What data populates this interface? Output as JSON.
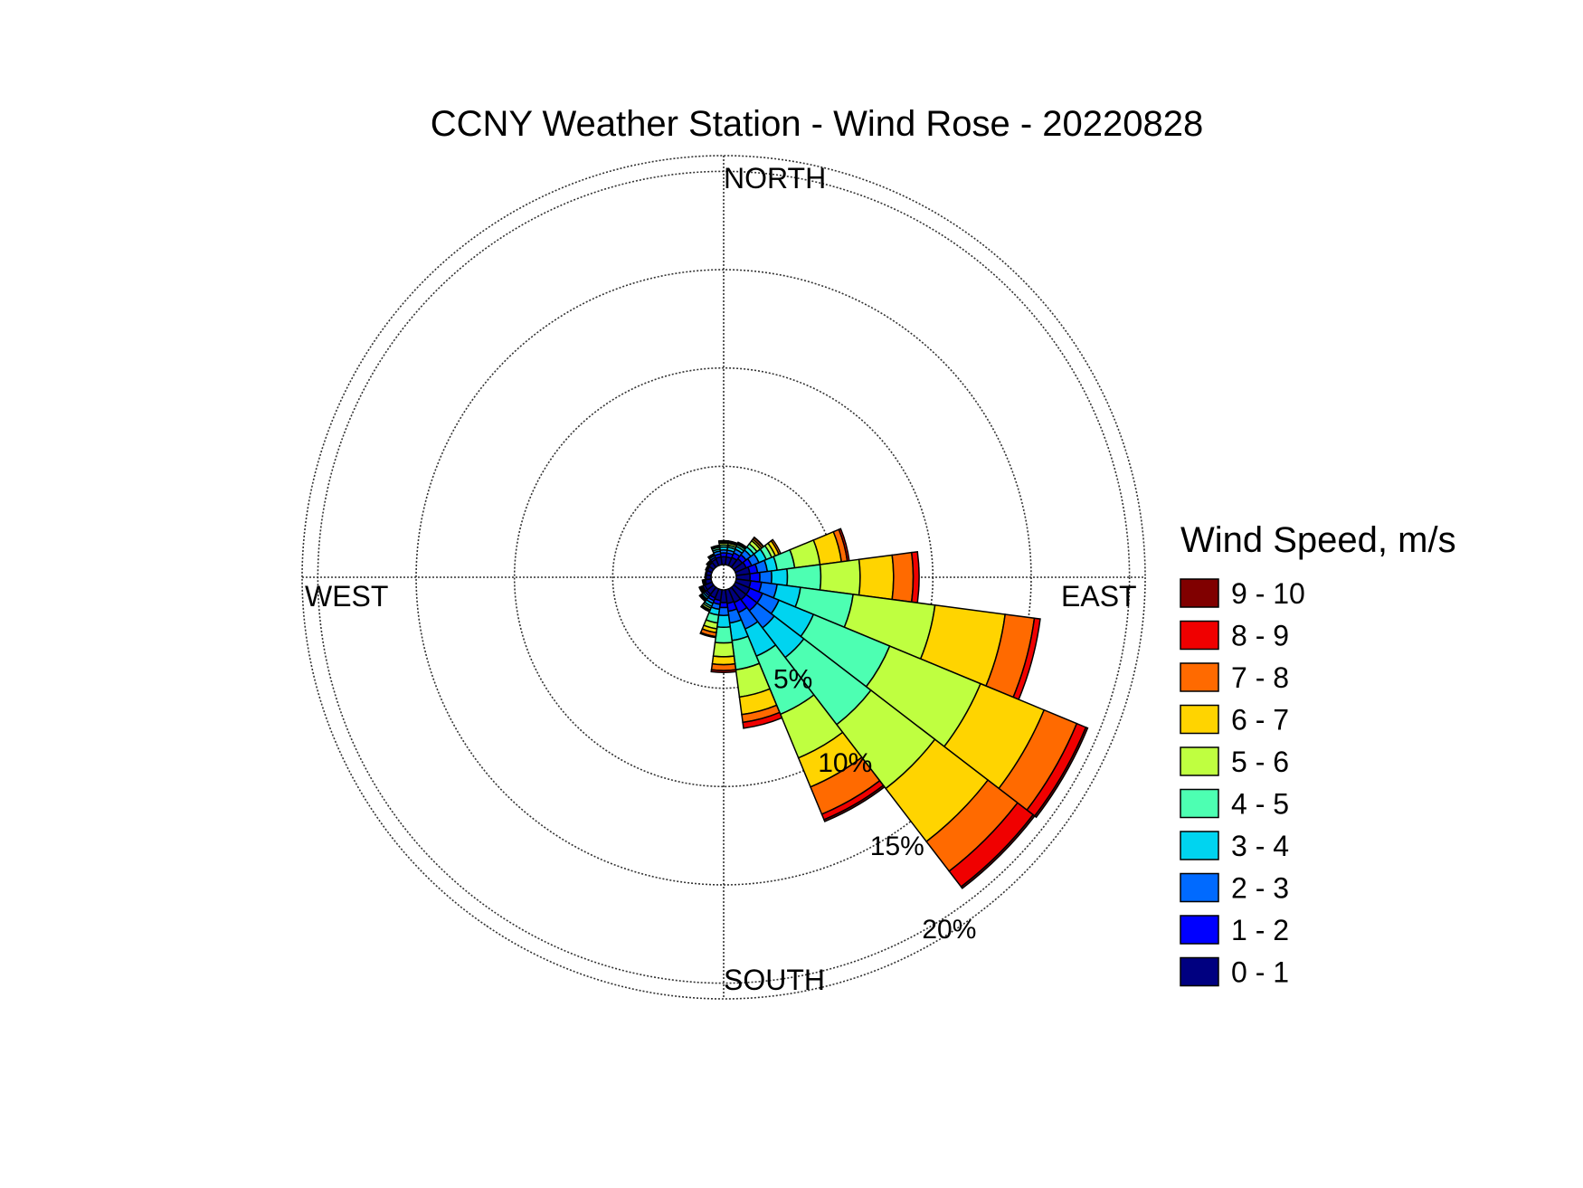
{
  "chart_data": {
    "type": "wind-rose",
    "title": "CCNY Weather Station - Wind Rose - 20220828",
    "direction_labels": {
      "north": "NORTH",
      "south": "SOUTH",
      "east": "EAST",
      "west": "WEST"
    },
    "radial_unit": "%",
    "radial_ticks": [
      {
        "value": 5,
        "label": "5%"
      },
      {
        "value": 10,
        "label": "10%"
      },
      {
        "value": 15,
        "label": "15%"
      },
      {
        "value": 20,
        "label": "20%"
      }
    ],
    "radial_max": 20.8,
    "legend": {
      "title": "Wind Speed, m/s",
      "placement": "right",
      "bins": [
        {
          "label": "9 - 10",
          "color": "#800000"
        },
        {
          "label": "8 - 9",
          "color": "#f00000"
        },
        {
          "label": "7 - 8",
          "color": "#ff6a00"
        },
        {
          "label": "6 - 7",
          "color": "#ffd400"
        },
        {
          "label": "5 - 6",
          "color": "#bfff40"
        },
        {
          "label": "4 - 5",
          "color": "#4dffb2"
        },
        {
          "label": "3 - 4",
          "color": "#00d4f0"
        },
        {
          "label": "2 - 3",
          "color": "#006aff"
        },
        {
          "label": "1 - 2",
          "color": "#0000ff"
        },
        {
          "label": "0 - 1",
          "color": "#000080"
        }
      ]
    },
    "bin_order": [
      "0 - 1",
      "1 - 2",
      "2 - 3",
      "3 - 4",
      "4 - 5",
      "5 - 6",
      "6 - 7",
      "7 - 8",
      "8 - 9",
      "9 - 10"
    ],
    "directions": [
      {
        "angle_deg": 0,
        "cumulative": [
          0.4,
          0.6,
          0.75,
          0.9,
          1.0,
          1.1,
          1.15,
          1.2,
          1.22,
          1.22
        ]
      },
      {
        "angle_deg": 15,
        "cumulative": [
          0.4,
          0.6,
          0.75,
          0.9,
          1.0,
          1.1,
          1.15,
          1.2,
          1.22,
          1.22
        ]
      },
      {
        "angle_deg": 30,
        "cumulative": [
          0.45,
          0.7,
          0.9,
          1.05,
          1.15,
          1.2,
          1.25,
          1.28,
          1.28,
          1.28
        ]
      },
      {
        "angle_deg": 45,
        "cumulative": [
          0.55,
          0.8,
          1.1,
          1.3,
          1.5,
          1.7,
          1.8,
          1.9,
          1.92,
          1.92
        ]
      },
      {
        "angle_deg": 60,
        "cumulative": [
          0.6,
          0.9,
          1.3,
          1.7,
          2.0,
          2.2,
          2.4,
          2.5,
          2.5,
          2.5
        ]
      },
      {
        "angle_deg": 75,
        "cumulative": [
          0.7,
          1.1,
          1.6,
          2.1,
          3.0,
          4.3,
          5.4,
          5.7,
          5.8,
          5.8
        ]
      },
      {
        "angle_deg": 90,
        "cumulative": [
          0.7,
          1.2,
          1.8,
          2.6,
          4.3,
          6.3,
          8.0,
          9.0,
          9.3,
          9.3
        ]
      },
      {
        "angle_deg": 105,
        "cumulative": [
          0.75,
          1.3,
          2.1,
          3.3,
          6.0,
          10.2,
          13.8,
          15.3,
          15.6,
          15.6
        ]
      },
      {
        "angle_deg": 120,
        "cumulative": [
          0.8,
          1.5,
          2.4,
          4.3,
          8.5,
          13.5,
          17.0,
          18.8,
          19.3,
          19.4
        ]
      },
      {
        "angle_deg": 135,
        "cumulative": [
          0.8,
          1.5,
          2.6,
          4.5,
          8.8,
          12.9,
          16.3,
          18.2,
          19.2,
          19.3
        ]
      },
      {
        "angle_deg": 150,
        "cumulative": [
          0.75,
          1.3,
          2.2,
          3.7,
          6.9,
          9.3,
          10.9,
          12.4,
          12.7,
          12.8
        ]
      },
      {
        "angle_deg": 165,
        "cumulative": [
          0.7,
          1.1,
          1.7,
          2.6,
          4.1,
          5.5,
          6.4,
          6.8,
          7.1,
          7.1
        ]
      },
      {
        "angle_deg": 180,
        "cumulative": [
          0.65,
          0.9,
          1.3,
          1.9,
          2.7,
          3.4,
          3.8,
          4.1,
          4.2,
          4.2
        ]
      },
      {
        "angle_deg": 195,
        "cumulative": [
          0.55,
          0.75,
          1.0,
          1.3,
          1.7,
          2.0,
          2.2,
          2.4,
          2.45,
          2.45
        ]
      },
      {
        "angle_deg": 210,
        "cumulative": [
          0.5,
          0.65,
          0.8,
          0.95,
          1.05,
          1.15,
          1.2,
          1.25,
          1.25,
          1.25
        ]
      },
      {
        "angle_deg": 225,
        "cumulative": [
          0.45,
          0.55,
          0.65,
          0.75,
          0.8,
          0.85,
          0.88,
          0.9,
          0.9,
          0.9
        ]
      },
      {
        "angle_deg": 240,
        "cumulative": [
          0.4,
          0.5,
          0.55,
          0.6,
          0.65,
          0.68,
          0.7,
          0.7,
          0.7,
          0.7
        ]
      },
      {
        "angle_deg": 255,
        "cumulative": [
          0.3,
          0.35,
          0.4,
          0.45,
          0.45,
          0.45,
          0.45,
          0.45,
          0.45,
          0.45
        ]
      },
      {
        "angle_deg": 270,
        "cumulative": [
          0.25,
          0.3,
          0.3,
          0.3,
          0.3,
          0.3,
          0.3,
          0.3,
          0.3,
          0.3
        ]
      },
      {
        "angle_deg": 285,
        "cumulative": [
          0.25,
          0.3,
          0.3,
          0.3,
          0.3,
          0.3,
          0.3,
          0.3,
          0.3,
          0.3
        ]
      },
      {
        "angle_deg": 300,
        "cumulative": [
          0.25,
          0.3,
          0.35,
          0.35,
          0.35,
          0.35,
          0.35,
          0.35,
          0.35,
          0.35
        ]
      },
      {
        "angle_deg": 315,
        "cumulative": [
          0.3,
          0.35,
          0.4,
          0.45,
          0.45,
          0.45,
          0.45,
          0.45,
          0.45,
          0.45
        ]
      },
      {
        "angle_deg": 330,
        "cumulative": [
          0.35,
          0.45,
          0.55,
          0.6,
          0.65,
          0.65,
          0.65,
          0.65,
          0.65,
          0.65
        ]
      },
      {
        "angle_deg": 345,
        "cumulative": [
          0.4,
          0.55,
          0.7,
          0.8,
          0.9,
          0.95,
          1.0,
          1.0,
          1.0,
          1.0
        ]
      }
    ],
    "sector_width_deg": 15,
    "grid": true
  }
}
